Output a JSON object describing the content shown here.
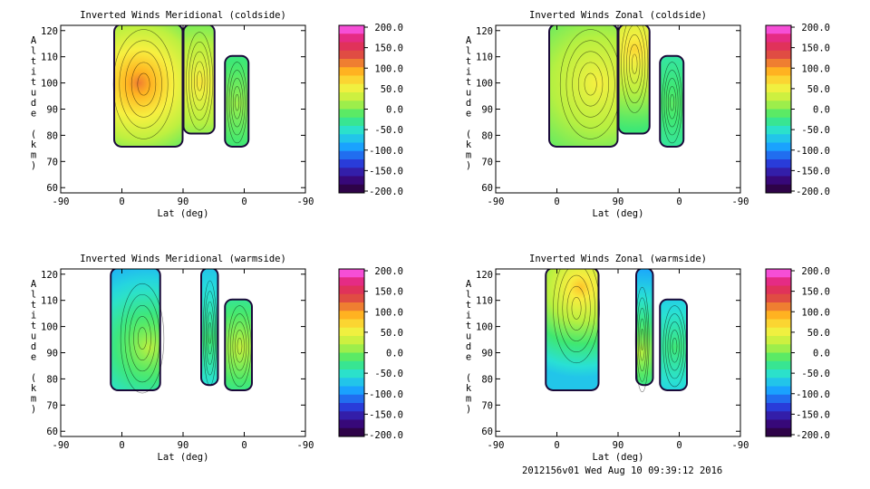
{
  "footer": "2012156v01 Wed Aug 10 09:39:12 2016",
  "colors": {
    "frame": "#000000",
    "colorbar_stops": [
      "#2a0030",
      "#3a0a88",
      "#2840e0",
      "#1aa0ff",
      "#28e0d8",
      "#40e870",
      "#b8f040",
      "#f8f040",
      "#ffb020",
      "#e05040",
      "#e0206a",
      "#ff60ff"
    ]
  },
  "chart_data": [
    {
      "type": "heatmap",
      "title": "Inverted Winds Meridional (coldside)",
      "xlabel": "Lat (deg)",
      "ylabel": "Altitude (km)",
      "x_ticks": [
        "-90",
        "0",
        "90",
        "0",
        "-90"
      ],
      "y_ticks": [
        "60",
        "70",
        "80",
        "90",
        "100",
        "110",
        "120"
      ],
      "ylim": [
        58,
        122
      ],
      "colorbar": {
        "range": [
          -200,
          200
        ],
        "labels": [
          "200.0",
          "150.0",
          "100.0",
          "50.0",
          "0.0",
          "-50.0",
          "-100.0",
          "-150.0",
          "-200.0"
        ]
      },
      "blobs": [
        {
          "lat_range": [
            -10,
            88
          ],
          "alt_range": [
            76,
            122
          ],
          "base_value": -25,
          "peak_value": 110,
          "peak_lat": 25,
          "peak_alt": 100
        },
        {
          "lat_range": [
            92,
            135
          ],
          "alt_range": [
            81,
            122
          ],
          "base_value": -20,
          "peak_value": 60,
          "peak_lat": 115,
          "peak_alt": 100
        },
        {
          "lat_range": [
            153,
            185
          ],
          "alt_range": [
            76,
            110
          ],
          "base_value": -35,
          "peak_value": 10,
          "peak_lat": 170,
          "peak_alt": 92
        }
      ]
    },
    {
      "type": "heatmap",
      "title": "Inverted Winds Zonal (coldside)",
      "xlabel": "Lat (deg)",
      "ylabel": "Altitude (km)",
      "x_ticks": [
        "-90",
        "0",
        "90",
        "0",
        "-90"
      ],
      "y_ticks": [
        "60",
        "70",
        "80",
        "90",
        "100",
        "110",
        "120"
      ],
      "ylim": [
        58,
        122
      ],
      "colorbar": {
        "range": [
          -200,
          200
        ],
        "labels": [
          "200.0",
          "150.0",
          "100.0",
          "50.0",
          "0.0",
          "-50.0",
          "-100.0",
          "-150.0",
          "-200.0"
        ]
      },
      "blobs": [
        {
          "lat_range": [
            -10,
            88
          ],
          "alt_range": [
            76,
            122
          ],
          "base_value": -15,
          "peak_value": 55,
          "peak_lat": 60,
          "peak_alt": 100
        },
        {
          "lat_range": [
            92,
            135
          ],
          "alt_range": [
            81,
            122
          ],
          "base_value": -20,
          "peak_value": 70,
          "peak_lat": 115,
          "peak_alt": 113
        },
        {
          "lat_range": [
            153,
            185
          ],
          "alt_range": [
            76,
            110
          ],
          "base_value": -45,
          "peak_value": -10,
          "peak_lat": 170,
          "peak_alt": 92
        }
      ]
    },
    {
      "type": "heatmap",
      "title": "Inverted Winds Meridional (warmside)",
      "xlabel": "Lat (deg)",
      "ylabel": "Altitude (km)",
      "x_ticks": [
        "-90",
        "0",
        "90",
        "0",
        "-90"
      ],
      "y_ticks": [
        "60",
        "70",
        "80",
        "90",
        "100",
        "110",
        "120"
      ],
      "ylim": [
        58,
        122
      ],
      "colorbar": {
        "range": [
          -200,
          200
        ],
        "labels": [
          "200.0",
          "150.0",
          "100.0",
          "50.0",
          "0.0",
          "-50.0",
          "-100.0",
          "-150.0",
          "-200.0"
        ]
      },
      "blobs": [
        {
          "lat_range": [
            -15,
            55
          ],
          "alt_range": [
            76,
            122
          ],
          "base_value": -85,
          "peak_value": 20,
          "peak_lat": 40,
          "peak_alt": 92
        },
        {
          "lat_range": [
            118,
            140
          ],
          "alt_range": [
            78,
            122
          ],
          "base_value": -80,
          "peak_value": -20,
          "peak_lat": 130,
          "peak_alt": 95
        },
        {
          "lat_range": [
            153,
            190
          ],
          "alt_range": [
            76,
            110
          ],
          "base_value": -50,
          "peak_value": 25,
          "peak_lat": 175,
          "peak_alt": 92
        }
      ]
    },
    {
      "type": "heatmap",
      "title": "Inverted Winds Zonal (warmside)",
      "xlabel": "Lat (deg)",
      "ylabel": "Altitude (km)",
      "x_ticks": [
        "-90",
        "0",
        "90",
        "0",
        "-90"
      ],
      "y_ticks": [
        "60",
        "70",
        "80",
        "90",
        "100",
        "110",
        "120"
      ],
      "ylim": [
        58,
        122
      ],
      "colorbar": {
        "range": [
          -200,
          200
        ],
        "labels": [
          "200.0",
          "150.0",
          "100.0",
          "50.0",
          "0.0",
          "-50.0",
          "-100.0",
          "-150.0",
          "-200.0"
        ]
      },
      "blobs": [
        {
          "lat_range": [
            -15,
            60
          ],
          "alt_range": [
            76,
            122
          ],
          "base_value": -70,
          "peak_value": 80,
          "peak_lat": 35,
          "peak_alt": 115
        },
        {
          "lat_range": [
            118,
            140
          ],
          "alt_range": [
            78,
            122
          ],
          "base_value": -90,
          "peak_value": 20,
          "peak_lat": 122,
          "peak_alt": 90
        },
        {
          "lat_range": [
            153,
            190
          ],
          "alt_range": [
            76,
            110
          ],
          "base_value": -80,
          "peak_value": -20,
          "peak_lat": 175,
          "peak_alt": 92
        }
      ]
    }
  ]
}
